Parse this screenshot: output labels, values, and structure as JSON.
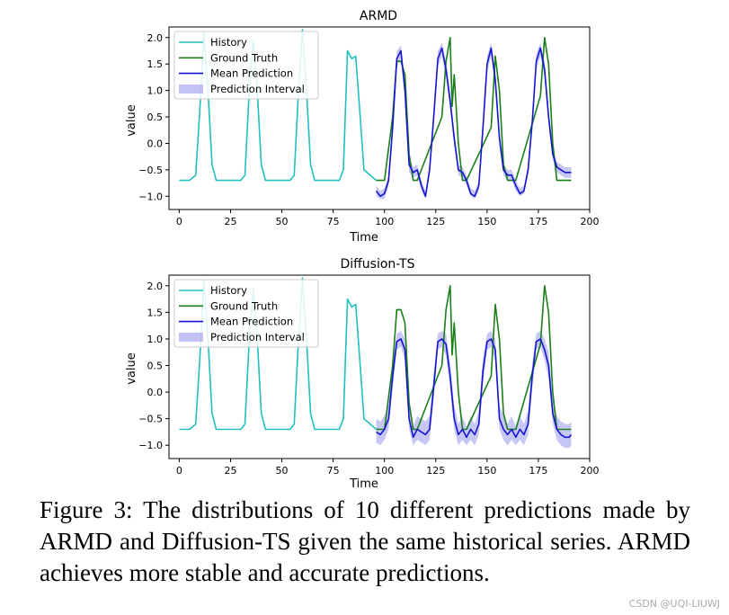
{
  "caption": "Figure 3: The distributions of 10 different predictions made by ARMD and Diffusion-TS given the same historical series. ARMD achieves more stable and accurate predictions.",
  "watermark": "CSDN @UQI-LIUWJ",
  "colors": {
    "history": "#20c0c0",
    "ground_truth": "#1a7f1a",
    "mean_prediction": "#1515d0",
    "interval": "#9999ee"
  },
  "chart_data": [
    {
      "type": "line",
      "title": "ARMD",
      "xlabel": "Time",
      "ylabel": "value",
      "xlim": [
        -5,
        200
      ],
      "ylim": [
        -1.25,
        2.2
      ],
      "xticks": [
        0,
        25,
        50,
        75,
        100,
        125,
        150,
        175,
        200
      ],
      "yticks": [
        -1.0,
        -0.5,
        0.0,
        0.5,
        1.0,
        1.5,
        2.0
      ],
      "xtick_labels": [
        "0",
        "25",
        "50",
        "75",
        "100",
        "125",
        "150",
        "175",
        "200"
      ],
      "ytick_labels": [
        "−1.0",
        "−0.5",
        "0.0",
        "0.5",
        "1.0",
        "1.5",
        "2.0"
      ],
      "legend_position": "top-left",
      "legend": [
        "History",
        "Ground Truth",
        "Mean Prediction",
        "Prediction Interval"
      ],
      "series": [
        {
          "name": "History",
          "x": [
            0,
            5,
            8,
            10,
            12,
            14,
            16,
            18,
            20,
            30,
            32,
            34,
            36,
            38,
            40,
            42,
            44,
            54,
            56,
            58,
            60,
            62,
            64,
            66,
            68,
            78,
            80,
            82,
            84,
            86,
            88,
            90,
            96
          ],
          "y": [
            -0.7,
            -0.7,
            -0.6,
            0.6,
            2.1,
            1.0,
            -0.4,
            -0.7,
            -0.7,
            -0.7,
            -0.6,
            0.9,
            1.95,
            1.0,
            -0.4,
            -0.7,
            -0.7,
            -0.7,
            -0.6,
            0.9,
            2.15,
            1.0,
            -0.4,
            -0.7,
            -0.7,
            -0.7,
            -0.5,
            1.75,
            1.6,
            1.65,
            0.6,
            -0.5,
            -0.7
          ]
        },
        {
          "name": "Ground Truth",
          "x": [
            96,
            100,
            104,
            106,
            108,
            110,
            112,
            114,
            116,
            128,
            130,
            132,
            133,
            134,
            136,
            138,
            140,
            152,
            154,
            156,
            158,
            160,
            162,
            164,
            176,
            178,
            180,
            182,
            184,
            186,
            191
          ],
          "y": [
            -0.7,
            -0.7,
            0.5,
            1.55,
            1.55,
            1.3,
            -0.2,
            -0.7,
            -0.7,
            0.5,
            1.55,
            2.0,
            0.7,
            1.3,
            0.0,
            -0.7,
            -0.7,
            0.3,
            1.65,
            1.0,
            -0.4,
            -0.7,
            -0.7,
            -0.7,
            0.9,
            2.0,
            1.5,
            0.0,
            -0.7,
            -0.7,
            -0.7
          ]
        },
        {
          "name": "Mean Prediction",
          "x": [
            96,
            98,
            100,
            102,
            104,
            106,
            108,
            110,
            112,
            114,
            116,
            118,
            120,
            122,
            124,
            126,
            128,
            130,
            132,
            134,
            136,
            138,
            140,
            142,
            144,
            146,
            148,
            150,
            152,
            154,
            156,
            158,
            160,
            162,
            164,
            166,
            168,
            170,
            172,
            174,
            176,
            178,
            180,
            182,
            184,
            186,
            188,
            190,
            191
          ],
          "y": [
            -0.9,
            -1.0,
            -0.95,
            -0.7,
            0.3,
            1.6,
            1.75,
            1.0,
            -0.4,
            -0.55,
            -0.5,
            -0.8,
            -1.0,
            -0.5,
            0.5,
            1.6,
            1.8,
            1.4,
            0.8,
            0.1,
            -0.5,
            -0.55,
            -0.7,
            -0.95,
            -1.0,
            -0.8,
            0.3,
            1.5,
            1.8,
            1.2,
            0.1,
            -0.5,
            -0.6,
            -0.6,
            -0.8,
            -0.95,
            -0.9,
            -0.5,
            0.4,
            1.55,
            1.8,
            1.4,
            0.5,
            -0.2,
            -0.45,
            -0.5,
            -0.55,
            -0.55,
            -0.55
          ]
        },
        {
          "name": "Prediction Interval",
          "x": [
            96,
            98,
            100,
            102,
            104,
            106,
            108,
            110,
            112,
            114,
            116,
            118,
            120,
            122,
            124,
            126,
            128,
            130,
            132,
            134,
            136,
            138,
            140,
            142,
            144,
            146,
            148,
            150,
            152,
            154,
            156,
            158,
            160,
            162,
            164,
            166,
            168,
            170,
            172,
            174,
            176,
            178,
            180,
            182,
            184,
            186,
            188,
            190,
            191
          ],
          "lower": [
            -1.0,
            -1.05,
            -1.05,
            -0.8,
            0.1,
            1.45,
            1.6,
            0.85,
            -0.55,
            -0.65,
            -0.6,
            -0.9,
            -1.05,
            -0.6,
            0.35,
            1.45,
            1.65,
            1.25,
            0.65,
            -0.05,
            -0.6,
            -0.65,
            -0.8,
            -1.0,
            -1.05,
            -0.9,
            0.15,
            1.35,
            1.65,
            1.05,
            -0.05,
            -0.6,
            -0.7,
            -0.7,
            -0.9,
            -1.0,
            -0.95,
            -0.6,
            0.25,
            1.4,
            1.65,
            1.25,
            0.35,
            -0.3,
            -0.55,
            -0.6,
            -0.65,
            -0.65,
            -0.65
          ],
          "upper": [
            -0.8,
            -0.9,
            -0.85,
            -0.6,
            0.45,
            1.75,
            1.85,
            1.15,
            -0.25,
            -0.45,
            -0.4,
            -0.7,
            -0.9,
            -0.4,
            0.65,
            1.75,
            1.9,
            1.55,
            0.95,
            0.25,
            -0.4,
            -0.45,
            -0.6,
            -0.85,
            -0.9,
            -0.7,
            0.45,
            1.65,
            1.9,
            1.35,
            0.25,
            -0.4,
            -0.5,
            -0.5,
            -0.7,
            -0.85,
            -0.8,
            -0.4,
            0.55,
            1.7,
            1.9,
            1.55,
            0.65,
            -0.1,
            -0.35,
            -0.4,
            -0.45,
            -0.45,
            -0.45
          ]
        }
      ]
    },
    {
      "type": "line",
      "title": "Diffusion-TS",
      "xlabel": "Time",
      "ylabel": "value",
      "xlim": [
        -5,
        200
      ],
      "ylim": [
        -1.25,
        2.2
      ],
      "xticks": [
        0,
        25,
        50,
        75,
        100,
        125,
        150,
        175,
        200
      ],
      "yticks": [
        -1.0,
        -0.5,
        0.0,
        0.5,
        1.0,
        1.5,
        2.0
      ],
      "xtick_labels": [
        "0",
        "25",
        "50",
        "75",
        "100",
        "125",
        "150",
        "175",
        "200"
      ],
      "ytick_labels": [
        "−1.0",
        "−0.5",
        "0.0",
        "0.5",
        "1.0",
        "1.5",
        "2.0"
      ],
      "legend_position": "top-left",
      "legend": [
        "History",
        "Ground Truth",
        "Mean Prediction",
        "Prediction Interval"
      ],
      "series": [
        {
          "name": "History",
          "x": [
            0,
            5,
            8,
            10,
            12,
            14,
            16,
            18,
            20,
            30,
            32,
            34,
            36,
            38,
            40,
            42,
            44,
            54,
            56,
            58,
            60,
            62,
            64,
            66,
            68,
            78,
            80,
            82,
            84,
            86,
            88,
            90,
            96
          ],
          "y": [
            -0.7,
            -0.7,
            -0.6,
            0.6,
            2.1,
            1.0,
            -0.4,
            -0.7,
            -0.7,
            -0.7,
            -0.6,
            0.9,
            1.95,
            1.0,
            -0.4,
            -0.7,
            -0.7,
            -0.7,
            -0.6,
            0.9,
            2.15,
            1.0,
            -0.4,
            -0.7,
            -0.7,
            -0.7,
            -0.5,
            1.75,
            1.6,
            1.65,
            0.6,
            -0.5,
            -0.7
          ]
        },
        {
          "name": "Ground Truth",
          "x": [
            96,
            100,
            104,
            106,
            108,
            110,
            112,
            114,
            116,
            128,
            130,
            132,
            133,
            134,
            136,
            138,
            140,
            152,
            154,
            156,
            158,
            160,
            162,
            164,
            176,
            178,
            180,
            182,
            184,
            186,
            191
          ],
          "y": [
            -0.7,
            -0.7,
            0.5,
            1.55,
            1.55,
            1.3,
            -0.2,
            -0.7,
            -0.7,
            0.5,
            1.55,
            2.0,
            0.7,
            1.3,
            0.0,
            -0.7,
            -0.7,
            0.3,
            1.65,
            1.0,
            -0.4,
            -0.7,
            -0.7,
            -0.7,
            0.9,
            2.0,
            1.5,
            0.0,
            -0.7,
            -0.7,
            -0.7
          ]
        },
        {
          "name": "Mean Prediction",
          "x": [
            96,
            98,
            100,
            102,
            104,
            106,
            108,
            110,
            112,
            114,
            116,
            118,
            120,
            122,
            124,
            126,
            128,
            130,
            132,
            134,
            136,
            138,
            140,
            142,
            144,
            146,
            148,
            150,
            152,
            154,
            156,
            158,
            160,
            162,
            164,
            166,
            168,
            170,
            172,
            174,
            176,
            178,
            180,
            182,
            184,
            186,
            188,
            190,
            191
          ],
          "y": [
            -0.75,
            -0.8,
            -0.7,
            -0.5,
            0.3,
            0.95,
            1.0,
            0.8,
            -0.5,
            -0.85,
            -0.7,
            -0.75,
            -0.8,
            -0.7,
            0.1,
            0.95,
            1.0,
            0.9,
            0.3,
            -0.5,
            -0.8,
            -0.7,
            -0.85,
            -0.7,
            -0.8,
            -0.6,
            0.4,
            0.95,
            1.0,
            0.8,
            -0.5,
            -0.7,
            -0.8,
            -0.7,
            -0.85,
            -0.7,
            -0.8,
            -0.6,
            0.3,
            0.95,
            1.0,
            0.8,
            0.5,
            -0.4,
            -0.7,
            -0.8,
            -0.85,
            -0.85,
            -0.8
          ]
        },
        {
          "name": "Prediction Interval",
          "x": [
            96,
            98,
            100,
            102,
            104,
            106,
            108,
            110,
            112,
            114,
            116,
            118,
            120,
            122,
            124,
            126,
            128,
            130,
            132,
            134,
            136,
            138,
            140,
            142,
            144,
            146,
            148,
            150,
            152,
            154,
            156,
            158,
            160,
            162,
            164,
            166,
            168,
            170,
            172,
            174,
            176,
            178,
            180,
            182,
            184,
            186,
            188,
            190,
            191
          ],
          "lower": [
            -0.95,
            -1.0,
            -0.9,
            -0.7,
            0.05,
            0.8,
            0.85,
            0.6,
            -0.7,
            -1.0,
            -0.9,
            -0.95,
            -1.0,
            -0.9,
            -0.15,
            0.8,
            0.85,
            0.7,
            0.05,
            -0.7,
            -1.0,
            -0.9,
            -1.0,
            -0.9,
            -1.0,
            -0.8,
            0.15,
            0.8,
            0.85,
            0.6,
            -0.7,
            -0.9,
            -1.0,
            -0.9,
            -1.0,
            -0.9,
            -1.0,
            -0.8,
            0.05,
            0.8,
            0.85,
            0.6,
            0.25,
            -0.6,
            -0.9,
            -1.0,
            -1.05,
            -1.05,
            -1.0
          ],
          "upper": [
            -0.5,
            -0.55,
            -0.45,
            -0.25,
            0.55,
            1.1,
            1.15,
            1.0,
            -0.25,
            -0.65,
            -0.45,
            -0.5,
            -0.55,
            -0.45,
            0.35,
            1.1,
            1.15,
            1.1,
            0.55,
            -0.25,
            -0.6,
            -0.45,
            -0.65,
            -0.45,
            -0.6,
            -0.35,
            0.65,
            1.1,
            1.15,
            1.0,
            -0.25,
            -0.45,
            -0.6,
            -0.45,
            -0.65,
            -0.45,
            -0.6,
            -0.35,
            0.55,
            1.1,
            1.15,
            1.0,
            0.75,
            -0.15,
            -0.45,
            -0.55,
            -0.6,
            -0.6,
            -0.55
          ]
        }
      ]
    }
  ]
}
